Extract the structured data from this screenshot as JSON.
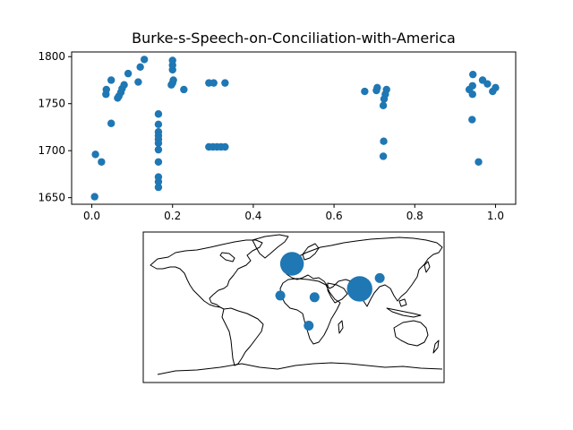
{
  "chart_data": [
    {
      "type": "scatter",
      "title": "Burke-s-Speech-on-Conciliation-with-America",
      "xlabel": "",
      "ylabel": "",
      "xlim": [
        -0.05,
        1.05
      ],
      "ylim": [
        1643,
        1805
      ],
      "xticks": [
        0.0,
        0.2,
        0.4,
        0.6,
        0.8,
        1.0
      ],
      "xtick_labels": [
        "0.0",
        "0.2",
        "0.4",
        "0.6",
        "0.8",
        "1.0"
      ],
      "yticks": [
        1650,
        1700,
        1750,
        1800
      ],
      "ytick_labels": [
        "1650",
        "1700",
        "1750",
        "1800"
      ],
      "grid": false,
      "color": "#1f77b4",
      "points": [
        {
          "x": 0.007,
          "y": 1651
        },
        {
          "x": 0.009,
          "y": 1696
        },
        {
          "x": 0.024,
          "y": 1688
        },
        {
          "x": 0.035,
          "y": 1760
        },
        {
          "x": 0.036,
          "y": 1765
        },
        {
          "x": 0.048,
          "y": 1729
        },
        {
          "x": 0.048,
          "y": 1775
        },
        {
          "x": 0.064,
          "y": 1756
        },
        {
          "x": 0.067,
          "y": 1758
        },
        {
          "x": 0.072,
          "y": 1762
        },
        {
          "x": 0.075,
          "y": 1766
        },
        {
          "x": 0.08,
          "y": 1770
        },
        {
          "x": 0.09,
          "y": 1782
        },
        {
          "x": 0.115,
          "y": 1773
        },
        {
          "x": 0.12,
          "y": 1789
        },
        {
          "x": 0.13,
          "y": 1797
        },
        {
          "x": 0.165,
          "y": 1739
        },
        {
          "x": 0.165,
          "y": 1728
        },
        {
          "x": 0.165,
          "y": 1720
        },
        {
          "x": 0.165,
          "y": 1716
        },
        {
          "x": 0.165,
          "y": 1712
        },
        {
          "x": 0.165,
          "y": 1708
        },
        {
          "x": 0.165,
          "y": 1701
        },
        {
          "x": 0.165,
          "y": 1688
        },
        {
          "x": 0.165,
          "y": 1672
        },
        {
          "x": 0.165,
          "y": 1667
        },
        {
          "x": 0.165,
          "y": 1661
        },
        {
          "x": 0.197,
          "y": 1770
        },
        {
          "x": 0.2,
          "y": 1772
        },
        {
          "x": 0.202,
          "y": 1775
        },
        {
          "x": 0.2,
          "y": 1786
        },
        {
          "x": 0.2,
          "y": 1791
        },
        {
          "x": 0.2,
          "y": 1796
        },
        {
          "x": 0.228,
          "y": 1765
        },
        {
          "x": 0.29,
          "y": 1772
        },
        {
          "x": 0.302,
          "y": 1772
        },
        {
          "x": 0.33,
          "y": 1772
        },
        {
          "x": 0.29,
          "y": 1704
        },
        {
          "x": 0.3,
          "y": 1704
        },
        {
          "x": 0.31,
          "y": 1704
        },
        {
          "x": 0.32,
          "y": 1704
        },
        {
          "x": 0.33,
          "y": 1704
        },
        {
          "x": 0.676,
          "y": 1763
        },
        {
          "x": 0.705,
          "y": 1764
        },
        {
          "x": 0.707,
          "y": 1767
        },
        {
          "x": 0.722,
          "y": 1748
        },
        {
          "x": 0.724,
          "y": 1755
        },
        {
          "x": 0.727,
          "y": 1760
        },
        {
          "x": 0.73,
          "y": 1765
        },
        {
          "x": 0.723,
          "y": 1710
        },
        {
          "x": 0.722,
          "y": 1694
        },
        {
          "x": 0.935,
          "y": 1765
        },
        {
          "x": 0.942,
          "y": 1733
        },
        {
          "x": 0.943,
          "y": 1760
        },
        {
          "x": 0.943,
          "y": 1769
        },
        {
          "x": 0.944,
          "y": 1781
        },
        {
          "x": 0.958,
          "y": 1688
        },
        {
          "x": 0.968,
          "y": 1775
        },
        {
          "x": 0.98,
          "y": 1771
        },
        {
          "x": 0.993,
          "y": 1763
        },
        {
          "x": 1.0,
          "y": 1767
        }
      ]
    },
    {
      "type": "scatter",
      "title": "",
      "projection": "equirectangular world map",
      "xlim": [
        -180,
        180
      ],
      "ylim": [
        -90,
        90
      ],
      "color": "#1f77b4",
      "points": [
        {
          "lon": -2,
          "lat": 52,
          "size": 260
        },
        {
          "lon": 79,
          "lat": 22,
          "size": 300
        },
        {
          "lon": 25,
          "lat": 12,
          "size": 45
        },
        {
          "lon": 103,
          "lat": 35,
          "size": 45
        },
        {
          "lon": -16,
          "lat": 14,
          "size": 45
        },
        {
          "lon": 18,
          "lat": -22,
          "size": 45
        }
      ]
    }
  ]
}
